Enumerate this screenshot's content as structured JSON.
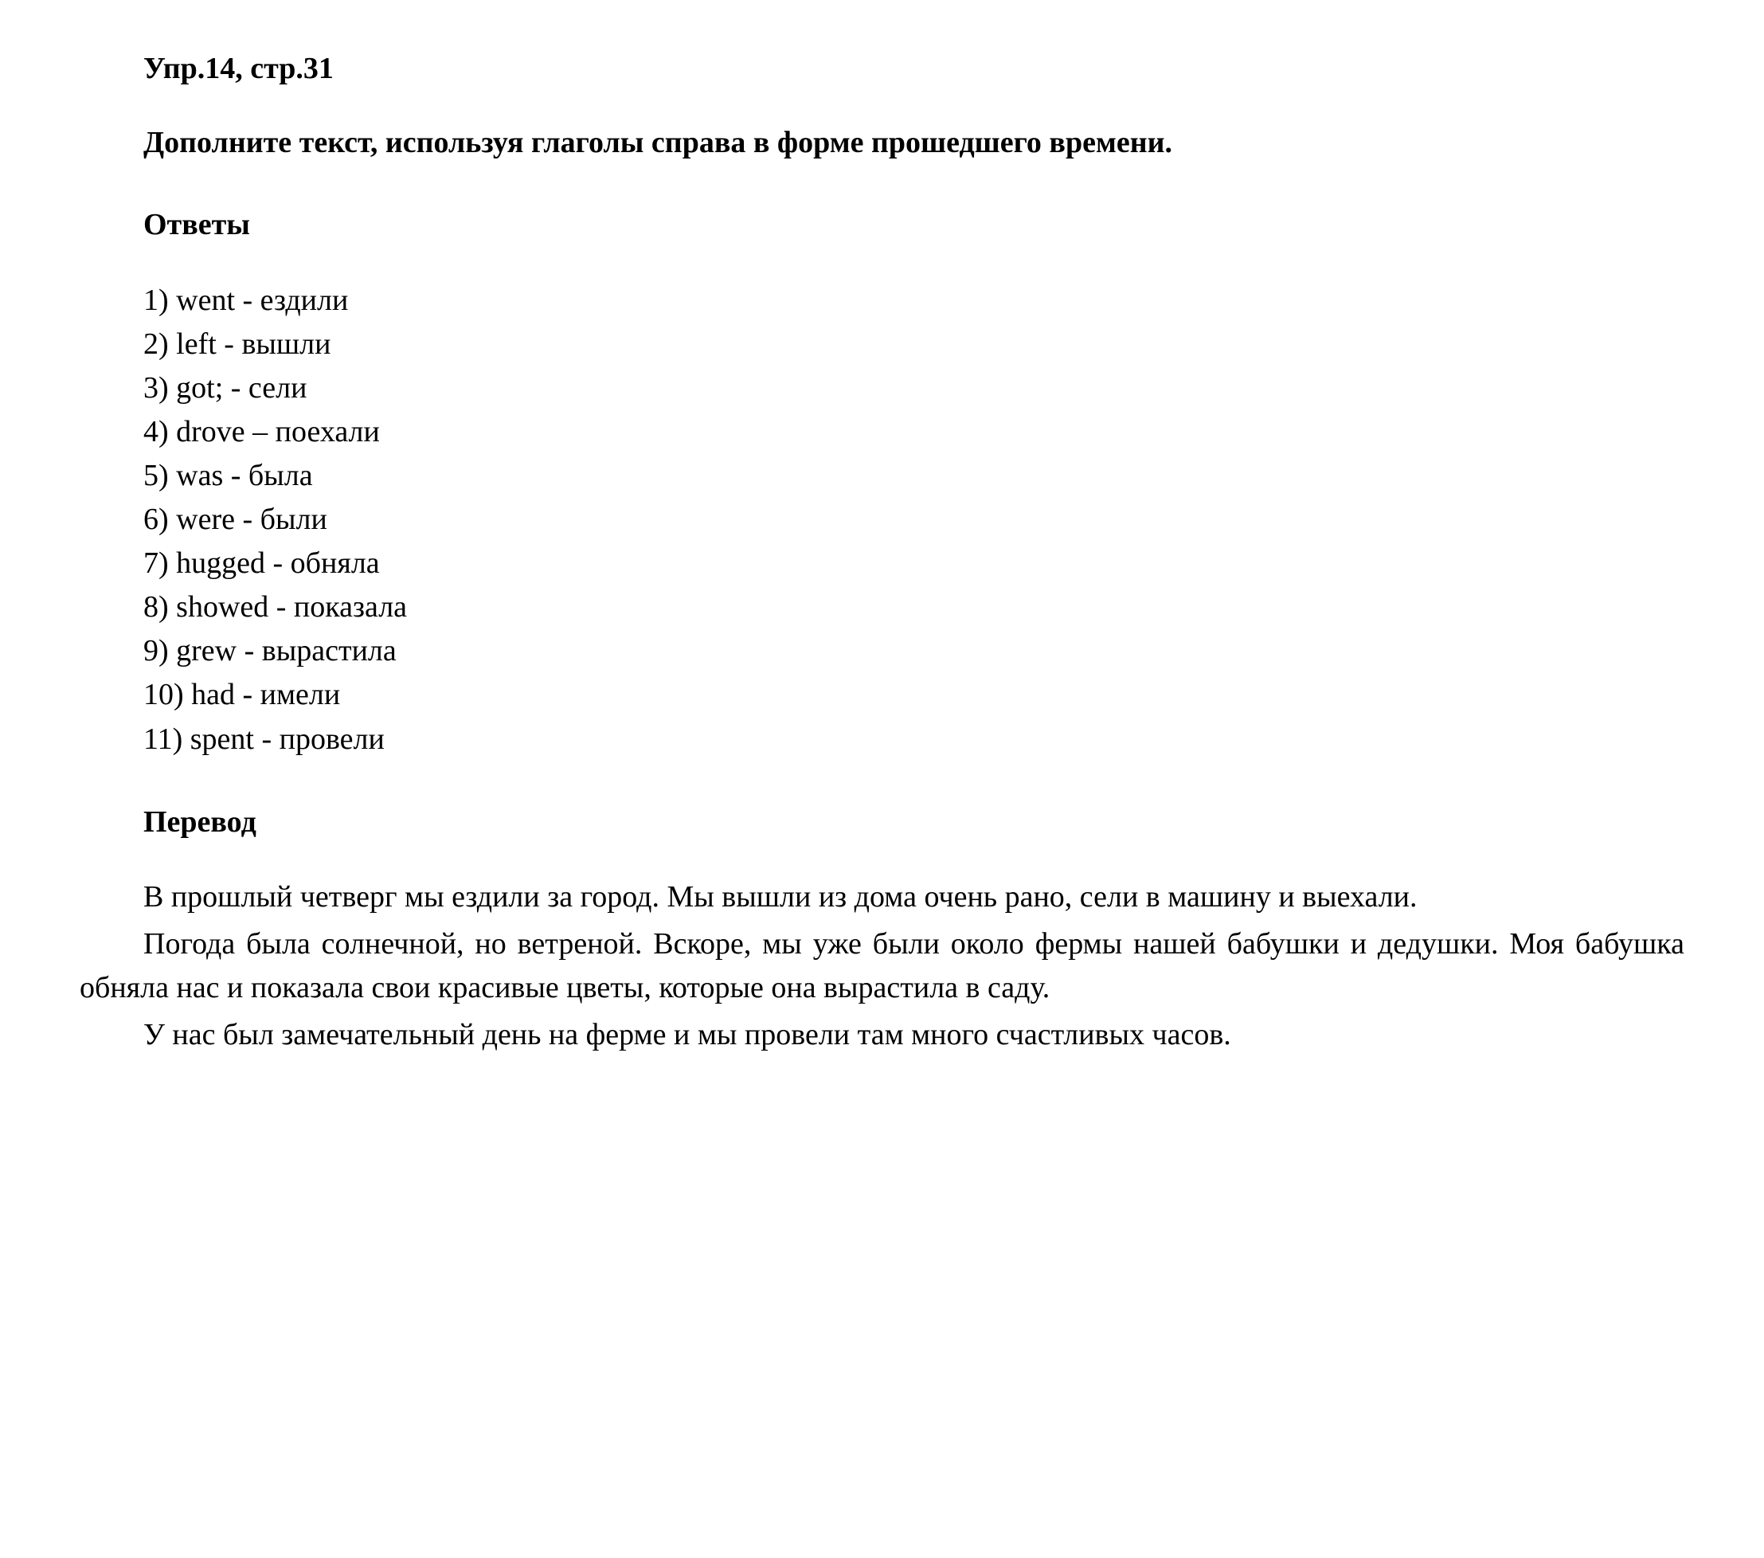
{
  "heading": "Упр.14, стр.31",
  "instruction": "Дополните текст, используя глаголы справа в форме прошедшего времени.",
  "answers_title": "Ответы",
  "answers": [
    "1) went - ездили",
    "2) left - вышли",
    "3) got;  - сели",
    "4) drove – поехали",
    "5) was - была",
    "6) were - были",
    "7) hugged - обняла",
    "8) showed - показала",
    "9) grew - вырастила",
    "10) had - имели",
    "11) spent - провели"
  ],
  "translation_title": "Перевод",
  "paragraphs": [
    "В прошлый четверг мы ездили за город. Мы вышли из дома очень рано, сели в машину и выехали.",
    "Погода была солнечной, но ветреной. Вскоре, мы уже были около фермы нашей бабушки и дедушки. Моя бабушка обняла нас и показала свои красивые цветы, которые она вырастила в саду.",
    "У нас был замечательный день на ферме и мы провели там много счастливых часов."
  ],
  "colors": {
    "text": "#000000",
    "background": "#ffffff"
  },
  "typography": {
    "font_family": "Times New Roman",
    "base_font_size": 38,
    "heading_weight": "bold",
    "body_weight": "normal"
  }
}
